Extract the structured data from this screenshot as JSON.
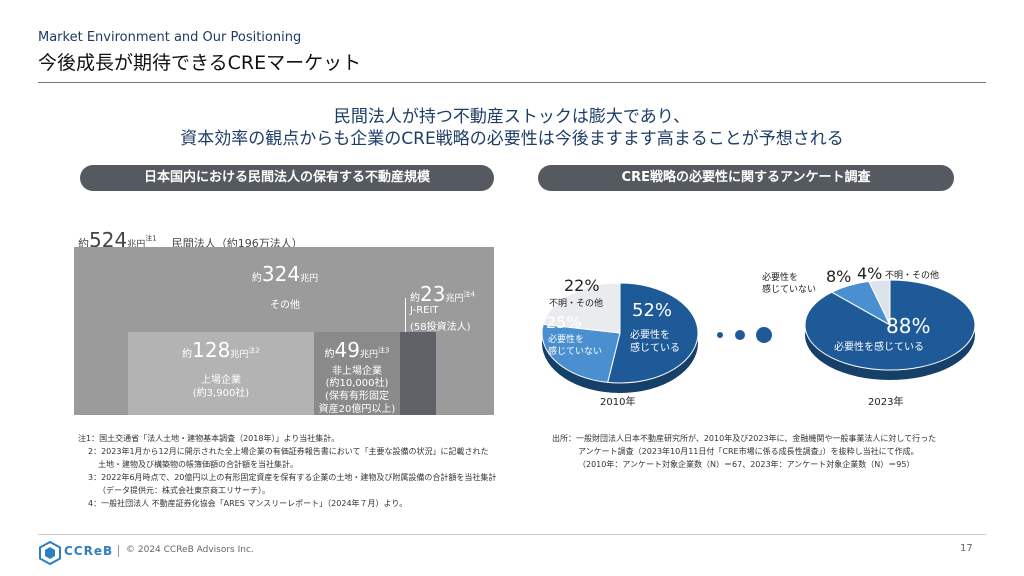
{
  "header": {
    "eyebrow": "Market Environment and Our Positioning",
    "title": "今後成長が期待できるCREマーケット"
  },
  "lead": {
    "line1": "民間法人が持つ不動産ストックは膨大であり、",
    "line2": "資本効率の観点からも企業のCRE戦略の必要性は今後ますます高まることが予想される"
  },
  "left_panel": {
    "heading": "日本国内における民間法人の保有する不動産規模",
    "total": {
      "prefix": "約",
      "value": "524",
      "unit": "兆円",
      "note_mark": "注1",
      "label": "民間法人（約196万法人）"
    },
    "other": {
      "prefix": "約",
      "value": "324",
      "unit": "兆円",
      "label": "その他"
    },
    "listed": {
      "prefix": "約",
      "value": "128",
      "unit": "兆円",
      "note_mark": "注2",
      "label1": "上場企業",
      "label2": "(約3,900社)"
    },
    "unlisted": {
      "prefix": "約",
      "value": "49",
      "unit": "兆円",
      "note_mark": "注3",
      "label1": "非上場企業",
      "label2": "(約10,000社)",
      "label3": "(保有有形固定",
      "label4": "資産20億円以上)"
    },
    "jreit": {
      "prefix": "約",
      "value": "23",
      "unit": "兆円",
      "note_mark": "注4",
      "label1": "J-REIT",
      "label2": "(58投資法人)"
    },
    "colors": {
      "total": "#9b9b9b",
      "listed": "#b3b3b3",
      "unlisted": "#8a8a8a",
      "jreit": "#5f6368"
    },
    "notes": [
      "注1：国土交通省「法人土地・建物基本調査（2018年）」より当社集計。",
      "2：2023年1月から12月に開示された全上場企業の有価証券報告書において「主要な設備の状況」に記載された",
      "土地・建物及び構築物の帳簿価額の合計額を当社集計。",
      "3：2022年6月時点で、20億円以上の有形固定資産を保有する企業の土地・建物及び附属設備の合計額を当社集計",
      "（データ提供元：株式会社東京商工リサーチ）。",
      "4：一般社団法人 不動産証券化協会「ARES マンスリーレポート」（2024年７月）より。"
    ]
  },
  "right_panel": {
    "heading": "CRE戦略の必要性に関するアンケート調査",
    "source": [
      "出所：一般財団法人日本不動産研究所が、2010年及び2023年に、金融機関や一般事業法人に対して行った",
      "アンケート調査（2023年10月11日付「CRE市場に係る成長性調査」）を抜粋し当社にて作成。",
      "（2010年：アンケート対象企業数（N）＝67、2023年：アンケート対象企業数（N）＝95）"
    ]
  },
  "chart_data": [
    {
      "type": "pie",
      "title": "2010年",
      "slices": [
        {
          "value": 52,
          "pct": "52%",
          "label1": "必要性を",
          "label2": "感じている",
          "color": "#1f5a98"
        },
        {
          "value": 25,
          "pct": "25%",
          "label1": "必要性を",
          "label2": "感じていない",
          "color": "#4a90d0"
        },
        {
          "value": 22,
          "pct": "22%",
          "label1": "不明・その他",
          "label2": "",
          "color": "#e9ebee"
        }
      ]
    },
    {
      "type": "pie",
      "title": "2023年",
      "slices": [
        {
          "value": 88,
          "pct": "88%",
          "label1": "必要性を感じている",
          "label2": "",
          "color": "#1f5a98"
        },
        {
          "value": 8,
          "pct": "8%",
          "label1": "必要性を",
          "label2": "感じていない",
          "color": "#4a90d0"
        },
        {
          "value": 4,
          "pct": "4%",
          "label1": "不明・その他",
          "label2": "",
          "color": "#dde3ea"
        }
      ]
    }
  ],
  "footer": {
    "logo_text": "CCReB",
    "copyright": "© 2024 CCReB Advisors Inc.",
    "page_number": "17"
  }
}
